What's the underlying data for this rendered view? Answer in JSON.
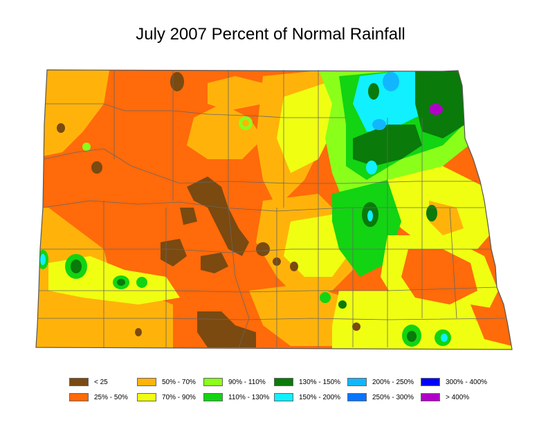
{
  "map": {
    "title": "July 2007 Percent of Normal Rainfall"
  },
  "legend": {
    "items": [
      {
        "key": "lt25",
        "label": "< 25",
        "color": "#7a4a10"
      },
      {
        "key": "25_50",
        "label": "25% - 50%",
        "color": "#ff6a0a"
      },
      {
        "key": "50_70",
        "label": "50% - 70%",
        "color": "#ffb30a"
      },
      {
        "key": "70_90",
        "label": "70% - 90%",
        "color": "#f0ff12"
      },
      {
        "key": "90_110",
        "label": "90% - 110%",
        "color": "#8aff1a"
      },
      {
        "key": "110_130",
        "label": "110% - 130%",
        "color": "#12d412"
      },
      {
        "key": "130_150",
        "label": "130% - 150%",
        "color": "#0a7a0a"
      },
      {
        "key": "150_200",
        "label": "150% - 200%",
        "color": "#10f0ff"
      },
      {
        "key": "200_250",
        "label": "200% - 250%",
        "color": "#12b6ff"
      },
      {
        "key": "250_300",
        "label": "250% - 300%",
        "color": "#0a74ff"
      },
      {
        "key": "300_400",
        "label": "300% - 400%",
        "color": "#0000ff"
      },
      {
        "key": "gt400",
        "label": "> 400%",
        "color": "#b000c8"
      }
    ]
  }
}
